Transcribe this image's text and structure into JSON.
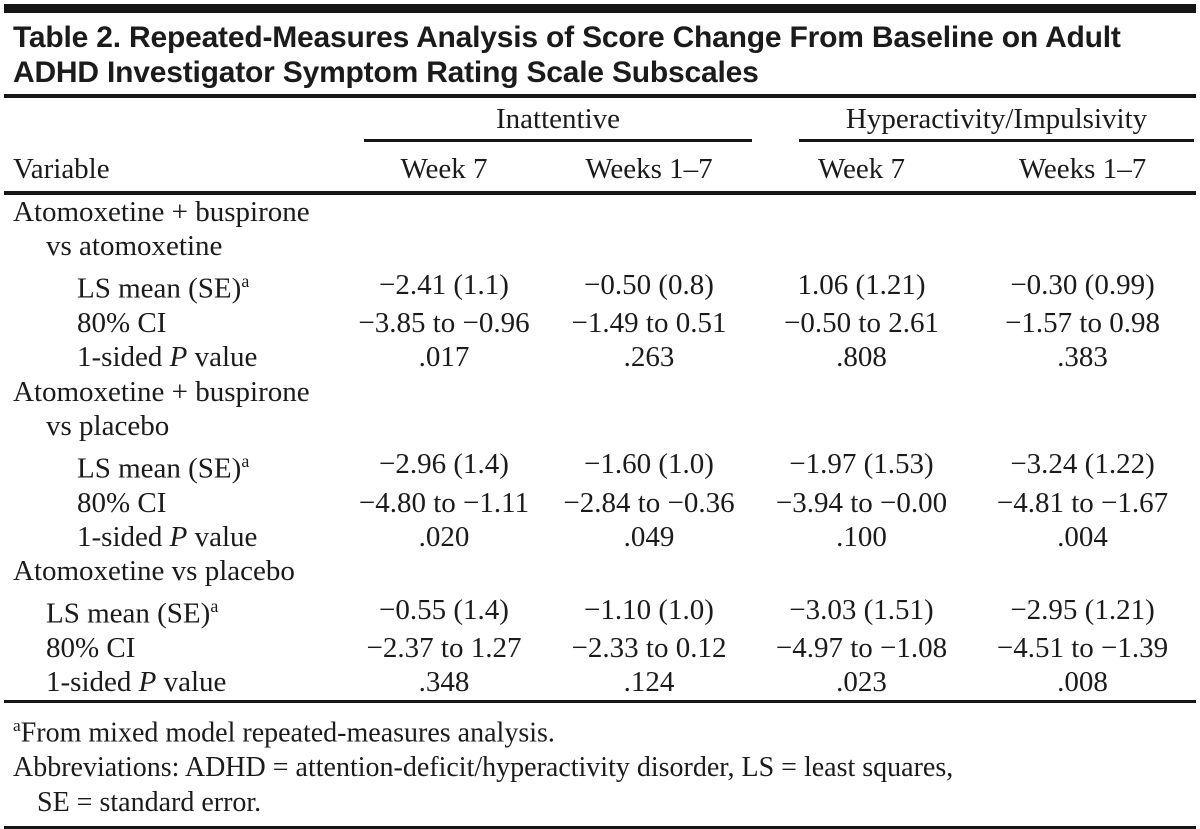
{
  "title": {
    "line1": "Table 2. Repeated-Measures Analysis of Score Change From Baseline on Adult",
    "line2": "ADHD Investigator Symptom Rating Scale Subscales"
  },
  "header": {
    "variable_label": "Variable",
    "spanners": [
      {
        "label": "Inattentive"
      },
      {
        "label": "Hyperactivity/Impulsivity"
      }
    ],
    "columns": [
      "Week 7",
      "Weeks 1–7",
      "Week 7",
      "Weeks 1–7"
    ]
  },
  "rows": [
    {
      "label": "Atomoxetine + buspirone",
      "indent": 0
    },
    {
      "label": "vs atomoxetine",
      "indent": 1
    },
    {
      "label": "LS mean (SE)",
      "footnote_marker": "a",
      "indent": 2,
      "values": [
        "−2.41 (1.1)",
        "−0.50 (0.8)",
        "1.06 (1.21)",
        "−0.30 (0.99)"
      ]
    },
    {
      "label": "80% CI",
      "indent": 2,
      "values": [
        "−3.85 to −0.96",
        "−1.49 to 0.51",
        "−0.50 to 2.61",
        "−1.57 to 0.98"
      ]
    },
    {
      "label_parts": [
        "1-sided ",
        "P",
        " value"
      ],
      "indent": 2,
      "values": [
        ".017",
        ".263",
        ".808",
        ".383"
      ]
    },
    {
      "label": "Atomoxetine + buspirone",
      "indent": 0
    },
    {
      "label": "vs placebo",
      "indent": 1
    },
    {
      "label": "LS mean (SE)",
      "footnote_marker": "a",
      "indent": 2,
      "values": [
        "−2.96 (1.4)",
        "−1.60 (1.0)",
        "−1.97 (1.53)",
        "−3.24 (1.22)"
      ]
    },
    {
      "label": "80% CI",
      "indent": 2,
      "values": [
        "−4.80 to −1.11",
        "−2.84 to −0.36",
        "−3.94 to −0.00",
        "−4.81 to −1.67"
      ]
    },
    {
      "label_parts": [
        "1-sided ",
        "P",
        " value"
      ],
      "indent": 2,
      "values": [
        ".020",
        ".049",
        ".100",
        ".004"
      ]
    },
    {
      "label": "Atomoxetine vs placebo",
      "indent": 0
    },
    {
      "label": "LS mean (SE)",
      "footnote_marker": "a",
      "indent": 1,
      "values": [
        "−0.55 (1.4)",
        "−1.10 (1.0)",
        "−3.03 (1.51)",
        "−2.95 (1.21)"
      ]
    },
    {
      "label": "80% CI",
      "indent": 1,
      "values": [
        "−2.37 to 1.27",
        "−2.33 to 0.12",
        "−4.97 to −1.08",
        "−4.51 to −1.39"
      ]
    },
    {
      "label_parts": [
        "1-sided ",
        "P",
        " value"
      ],
      "indent": 1,
      "values": [
        ".348",
        ".124",
        ".023",
        ".008"
      ]
    }
  ],
  "footnotes": {
    "lines": [
      {
        "marker": "a",
        "text": "From mixed model repeated-measures analysis."
      },
      {
        "text": "Abbreviations: ADHD = attention-deficit/hyperactivity disorder, LS = least squares,"
      },
      {
        "text": "SE = standard error.",
        "indent": true
      }
    ]
  },
  "colors": {
    "text": "#1b1b1b",
    "rule": "#161616",
    "background": "#ffffff"
  }
}
